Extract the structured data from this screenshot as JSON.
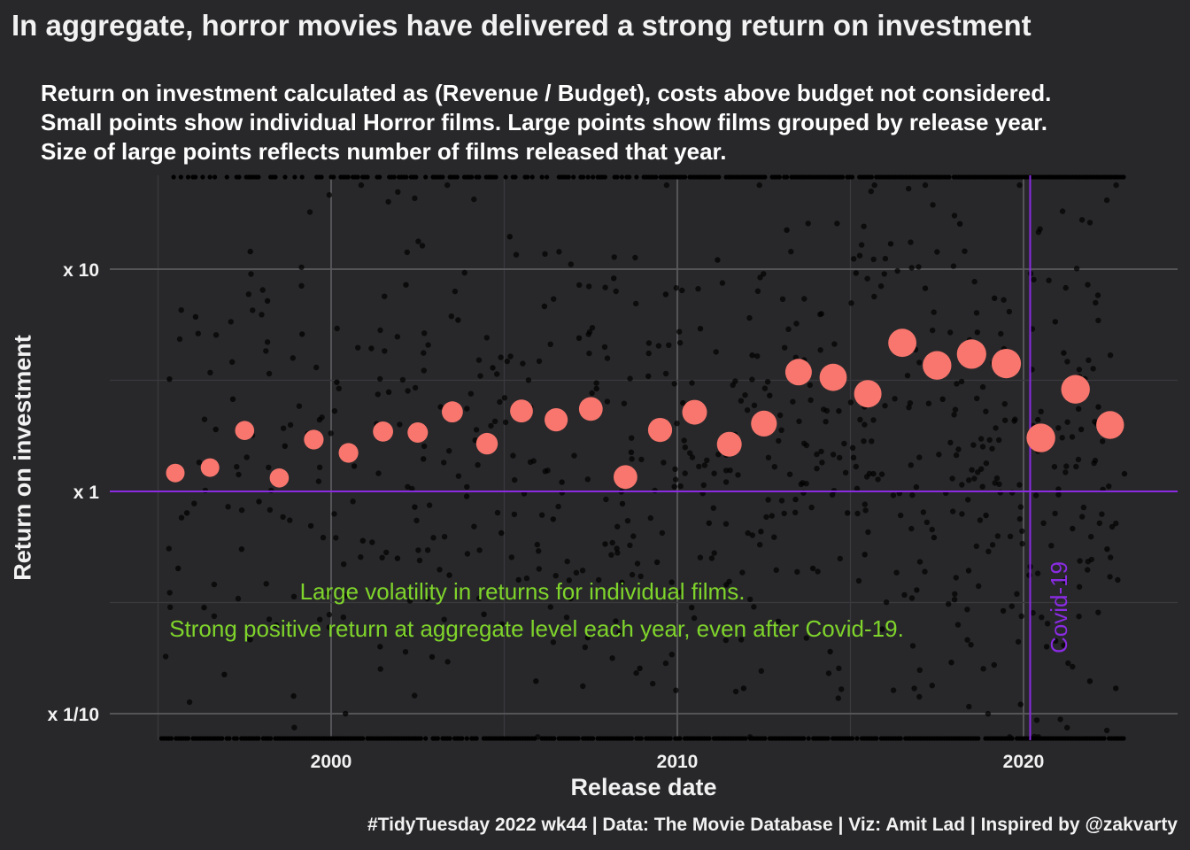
{
  "title": "In aggregate, horror movies have delivered a strong return on investment",
  "subtitle": [
    "Return on investment calculated as (Revenue / Budget), costs above budget not considered.",
    "Small points show individual Horror films.  Large points show films grouped by release year.",
    "Size of large points reflects number of films released that year."
  ],
  "caption": "#TidyTuesday 2022 wk44 | Data: The Movie Database | Viz: Amit Lad | Inspired by @zakvarty",
  "colors": {
    "background": "#28282b",
    "grid_major": "#5a5a5e",
    "grid_minor": "#3a3a3e",
    "film_points": "#000000",
    "year_points": "#f8766d",
    "reference_lines": "#8a2be2",
    "annotation_text": "#7fd42b"
  },
  "annotations": {
    "line1": "Large volatility in returns for individual films.",
    "line2": "Strong positive return at aggregate level each year, even after Covid-19.",
    "covid_label": "Covid-19"
  },
  "chart_data": {
    "type": "scatter",
    "xlabel": "Release date",
    "ylabel": "Return on investment",
    "x_scale": "date",
    "y_scale": "log10",
    "xlim": [
      "1994-07-01",
      "2024-08-01"
    ],
    "ylim": [
      0.075,
      25
    ],
    "x_ticks": [
      {
        "value": "2000-01-01",
        "label": "2000"
      },
      {
        "value": "2010-01-01",
        "label": "2010"
      },
      {
        "value": "2020-01-01",
        "label": "2020"
      }
    ],
    "y_ticks": [
      {
        "value": 0.1,
        "label": "x 1/10"
      },
      {
        "value": 1,
        "label": "x 1"
      },
      {
        "value": 10,
        "label": "x 10"
      }
    ],
    "grid": true,
    "reference_lines": {
      "y": 1,
      "x": "2020-03-11"
    },
    "series": [
      {
        "name": "",
        "description_type": "yearly aggregate",
        "points": [
          {
            "year": 1995,
            "roi": 1.21,
            "films": 55
          },
          {
            "year": 1996,
            "roi": 1.28,
            "films": 55
          },
          {
            "year": 1997,
            "roi": 1.88,
            "films": 60
          },
          {
            "year": 1998,
            "roi": 1.15,
            "films": 60
          },
          {
            "year": 1999,
            "roi": 1.71,
            "films": 65
          },
          {
            "year": 2000,
            "roi": 1.49,
            "films": 65
          },
          {
            "year": 2001,
            "roi": 1.86,
            "films": 70
          },
          {
            "year": 2002,
            "roi": 1.84,
            "films": 72
          },
          {
            "year": 2003,
            "roi": 2.28,
            "films": 80
          },
          {
            "year": 2004,
            "roi": 1.64,
            "films": 85
          },
          {
            "year": 2005,
            "roi": 2.3,
            "films": 100
          },
          {
            "year": 2006,
            "roi": 2.1,
            "films": 105
          },
          {
            "year": 2007,
            "roi": 2.35,
            "films": 110
          },
          {
            "year": 2008,
            "roi": 1.16,
            "films": 110
          },
          {
            "year": 2009,
            "roi": 1.89,
            "films": 115
          },
          {
            "year": 2010,
            "roi": 2.27,
            "films": 125
          },
          {
            "year": 2011,
            "roi": 1.63,
            "films": 125
          },
          {
            "year": 2012,
            "roi": 2.02,
            "films": 140
          },
          {
            "year": 2013,
            "roi": 3.44,
            "films": 150
          },
          {
            "year": 2014,
            "roi": 3.26,
            "films": 160
          },
          {
            "year": 2015,
            "roi": 2.75,
            "films": 165
          },
          {
            "year": 2016,
            "roi": 4.66,
            "films": 175
          },
          {
            "year": 2017,
            "roi": 3.69,
            "films": 185
          },
          {
            "year": 2018,
            "roi": 4.15,
            "films": 195
          },
          {
            "year": 2019,
            "roi": 3.76,
            "films": 195
          },
          {
            "year": 2020,
            "roi": 1.74,
            "films": 185
          },
          {
            "year": 2021,
            "roi": 2.88,
            "films": 185
          },
          {
            "year": 2022,
            "roi": 1.99,
            "films": 170
          }
        ]
      },
      {
        "name": "",
        "description_type": "individual films (sample)",
        "points": [
          [
            "1995-05-01",
            3.2
          ],
          [
            "1995-08-01",
            0.45
          ],
          [
            "1995-11-01",
            0.8
          ],
          [
            "1996-02-01",
            6.1
          ],
          [
            "1996-05-01",
            0.3
          ],
          [
            "1996-09-01",
            1.9
          ],
          [
            "1996-12-01",
            0.15
          ],
          [
            "1997-03-01",
            2.6
          ],
          [
            "1997-06-01",
            0.55
          ],
          [
            "1997-09-01",
            12
          ],
          [
            "1997-12-01",
            0.9
          ],
          [
            "1998-03-01",
            7.2
          ],
          [
            "1998-06-01",
            0.25
          ],
          [
            "1998-09-01",
            1.6
          ],
          [
            "1998-12-01",
            0.12
          ],
          [
            "1999-03-01",
            5.1
          ],
          [
            "1999-06-01",
            0.7
          ],
          [
            "1999-09-01",
            2.1
          ],
          [
            "1999-12-01",
            0.35
          ],
          [
            "2000-03-01",
            3.1
          ],
          [
            "2000-06-01",
            0.1
          ],
          [
            "2000-09-01",
            1.3
          ],
          [
            "2000-12-01",
            0.6
          ],
          [
            "2001-03-01",
            4.4
          ],
          [
            "2001-06-01",
            0.2
          ],
          [
            "2001-09-01",
            2.8
          ],
          [
            "2001-12-01",
            0.5
          ],
          [
            "2002-03-01",
            8.5
          ],
          [
            "2002-06-01",
            0.85
          ],
          [
            "2002-09-01",
            1.4
          ],
          [
            "2002-12-01",
            0.18
          ],
          [
            "2003-03-01",
            2.4
          ],
          [
            "2003-06-01",
            0.42
          ],
          [
            "2003-09-01",
            5.9
          ],
          [
            "2003-12-01",
            0.95
          ],
          [
            "2004-03-01",
            1.7
          ],
          [
            "2004-06-01",
            0.28
          ],
          [
            "2004-09-01",
            3.6
          ],
          [
            "2004-12-01",
            0.65
          ],
          [
            "2005-03-01",
            14
          ],
          [
            "2005-06-01",
            0.4
          ],
          [
            "2005-09-01",
            2.2
          ],
          [
            "2005-12-01",
            0.14
          ],
          [
            "2006-03-01",
            6.8
          ],
          [
            "2006-06-01",
            0.75
          ],
          [
            "2006-09-01",
            1.1
          ],
          [
            "2006-12-01",
            0.33
          ],
          [
            "2007-03-01",
            4.9
          ],
          [
            "2007-06-01",
            0.22
          ],
          [
            "2007-09-01",
            2.9
          ],
          [
            "2007-12-01",
            0.58
          ],
          [
            "2008-03-01",
            9.1
          ],
          [
            "2008-06-01",
            0.88
          ],
          [
            "2008-09-01",
            1.5
          ],
          [
            "2008-12-01",
            0.16
          ],
          [
            "2009-03-01",
            3.3
          ],
          [
            "2009-06-01",
            0.48
          ],
          [
            "2009-09-01",
            7.7
          ],
          [
            "2009-12-01",
            1.05
          ],
          [
            "2010-03-01",
            2.5
          ],
          [
            "2010-06-01",
            0.3
          ],
          [
            "2010-09-01",
            5.4
          ],
          [
            "2010-12-01",
            0.72
          ],
          [
            "2011-03-01",
            11
          ],
          [
            "2011-06-01",
            0.38
          ],
          [
            "2011-09-01",
            1.8
          ],
          [
            "2011-12-01",
            0.13
          ],
          [
            "2012-03-01",
            4.1
          ],
          [
            "2012-06-01",
            0.66
          ],
          [
            "2012-09-01",
            2.7
          ],
          [
            "2012-12-01",
            0.26
          ],
          [
            "2013-03-01",
            15
          ],
          [
            "2013-06-01",
            0.92
          ],
          [
            "2013-09-01",
            3.9
          ],
          [
            "2013-12-01",
            0.45
          ],
          [
            "2014-03-01",
            6.3
          ],
          [
            "2014-06-01",
            0.19
          ],
          [
            "2014-09-01",
            2.3
          ],
          [
            "2014-12-01",
            0.8
          ],
          [
            "2015-03-01",
            9.6
          ],
          [
            "2015-06-01",
            0.52
          ],
          [
            "2015-09-01",
            1.2
          ],
          [
            "2015-12-01",
            0.24
          ],
          [
            "2016-03-01",
            13
          ],
          [
            "2016-06-01",
            0.98
          ],
          [
            "2016-09-01",
            4.5
          ],
          [
            "2016-12-01",
            0.36
          ],
          [
            "2017-03-01",
            8.2
          ],
          [
            "2017-06-01",
            0.62
          ],
          [
            "2017-09-01",
            2.6
          ],
          [
            "2017-12-01",
            0.17
          ],
          [
            "2018-03-01",
            16
          ],
          [
            "2018-06-01",
            0.44
          ],
          [
            "2018-09-01",
            5.2
          ],
          [
            "2018-12-01",
            0.78
          ],
          [
            "2019-03-01",
            7.4
          ],
          [
            "2019-06-01",
            0.29
          ],
          [
            "2019-09-01",
            3.4
          ],
          [
            "2019-12-01",
            0.11
          ],
          [
            "2020-03-01",
            0.42
          ],
          [
            "2020-06-01",
            2.1
          ],
          [
            "2020-09-01",
            0.2
          ],
          [
            "2020-12-01",
            5.8
          ],
          [
            "2021-03-01",
            4.2
          ],
          [
            "2021-06-01",
            0.68
          ],
          [
            "2021-09-01",
            1.9
          ],
          [
            "2021-12-01",
            0.14
          ],
          [
            "2022-03-01",
            2.4
          ],
          [
            "2022-06-01",
            0.55
          ],
          [
            "2022-09-01",
            0.13
          ],
          [
            "2022-12-01",
            1.2
          ]
        ]
      }
    ]
  }
}
